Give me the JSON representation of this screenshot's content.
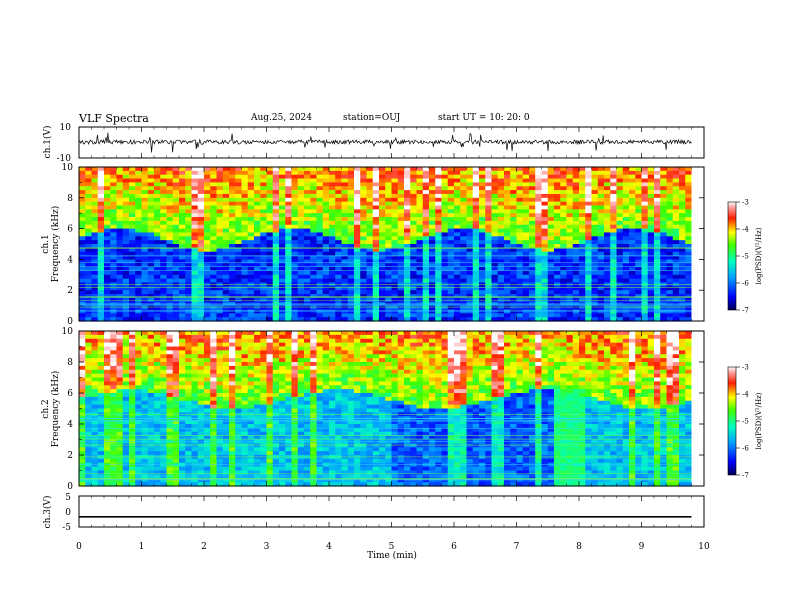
{
  "header": {
    "title": "VLF Spectra",
    "date": "Aug.25, 2024",
    "station": "station=OUJ",
    "start": "start  UT =   10: 20: 0"
  },
  "chart_data": [
    {
      "type": "line",
      "panel": "ch1-waveform",
      "ylabel": "ch.1(V)",
      "ylim": [
        -10,
        10
      ],
      "yticks": [
        "10",
        "-10"
      ],
      "xlim": [
        0,
        10
      ],
      "color": "#000000"
    },
    {
      "type": "heatmap",
      "panel": "ch1-spectrogram",
      "ylabel": "ch.1\nFrequency  (kHz)",
      "ylabel_line1": "ch.1",
      "ylabel_line2": "Frequency  (kHz)",
      "ylim": [
        0,
        10
      ],
      "yticks": [
        "0",
        "2",
        "4",
        "6",
        "8",
        "10"
      ],
      "xlim": [
        0,
        10
      ],
      "colorbar": {
        "label": "log(PSD)(V²/Hz)",
        "range": [
          -7,
          -3
        ],
        "ticks": [
          "-3",
          "-4",
          "-5",
          "-6",
          "-7"
        ]
      }
    },
    {
      "type": "heatmap",
      "panel": "ch2-spectrogram",
      "ylabel": "ch.2\nFrequency  (kHz)",
      "ylabel_line1": "ch.2",
      "ylabel_line2": "Frequency  (kHz)",
      "ylim": [
        0,
        10
      ],
      "yticks": [
        "0",
        "2",
        "4",
        "6",
        "8",
        "10"
      ],
      "xlim": [
        0,
        10
      ],
      "colorbar": {
        "label": "log(PSD)(V²/Hz)",
        "range": [
          -7,
          -3
        ],
        "ticks": [
          "-3",
          "-4",
          "-5",
          "-6",
          "-7"
        ]
      }
    },
    {
      "type": "line",
      "panel": "ch3-waveform",
      "ylabel": "ch.3(V)",
      "ylim": [
        -5,
        5
      ],
      "yticks": [
        "5",
        "0",
        "-5"
      ],
      "xlim": [
        0,
        10
      ],
      "x": [
        0,
        9.8
      ],
      "y": [
        -1.7,
        -1.7
      ],
      "color": "#000000"
    }
  ],
  "xaxis": {
    "label": "Time  (min)",
    "ticks": [
      "0",
      "1",
      "2",
      "3",
      "4",
      "5",
      "6",
      "7",
      "8",
      "9",
      "10"
    ]
  },
  "colors": {
    "line": "#000000",
    "axis": "#000000"
  }
}
